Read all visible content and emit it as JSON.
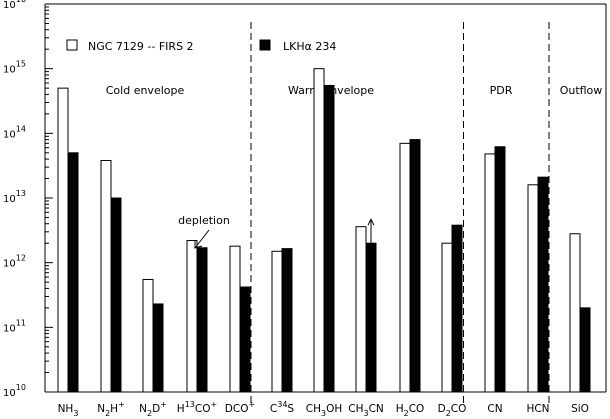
{
  "chart_data": {
    "type": "bar",
    "yscale": "log",
    "ylim": [
      10000000000.0,
      1e+16
    ],
    "y_ticks": [
      {
        "value": 10000000000.0,
        "label_base": "10",
        "label_exp": "10"
      },
      {
        "value": 100000000000.0,
        "label_base": "10",
        "label_exp": "11"
      },
      {
        "value": 1000000000000.0,
        "label_base": "10",
        "label_exp": "12"
      },
      {
        "value": 10000000000000.0,
        "label_base": "10",
        "label_exp": "13"
      },
      {
        "value": 100000000000000.0,
        "label_base": "10",
        "label_exp": "14"
      },
      {
        "value": 1000000000000000.0,
        "label_base": "10",
        "label_exp": "15"
      },
      {
        "value": 1e+16,
        "label_base": "10",
        "label_exp": "16"
      }
    ],
    "categories": [
      {
        "parts": [
          {
            "t": "NH"
          },
          {
            "t": "3",
            "s": "sub"
          }
        ]
      },
      {
        "parts": [
          {
            "t": "N"
          },
          {
            "t": "2",
            "s": "sub"
          },
          {
            "t": "H"
          },
          {
            "t": "+",
            "s": "sup"
          }
        ]
      },
      {
        "parts": [
          {
            "t": "N"
          },
          {
            "t": "2",
            "s": "sub"
          },
          {
            "t": "D"
          },
          {
            "t": "+",
            "s": "sup"
          }
        ]
      },
      {
        "parts": [
          {
            "t": "H"
          },
          {
            "t": "13",
            "s": "sup"
          },
          {
            "t": "CO"
          },
          {
            "t": "+",
            "s": "sup"
          }
        ]
      },
      {
        "parts": [
          {
            "t": "DCO"
          },
          {
            "t": "+",
            "s": "sup"
          }
        ]
      },
      {
        "parts": [
          {
            "t": "C"
          },
          {
            "t": "34",
            "s": "sup"
          },
          {
            "t": "S"
          }
        ]
      },
      {
        "parts": [
          {
            "t": "CH"
          },
          {
            "t": "3",
            "s": "sub"
          },
          {
            "t": "OH"
          }
        ]
      },
      {
        "parts": [
          {
            "t": "CH"
          },
          {
            "t": "3",
            "s": "sub"
          },
          {
            "t": "CN"
          }
        ]
      },
      {
        "parts": [
          {
            "t": "H"
          },
          {
            "t": "2",
            "s": "sub"
          },
          {
            "t": "CO"
          }
        ]
      },
      {
        "parts": [
          {
            "t": "D"
          },
          {
            "t": "2",
            "s": "sub"
          },
          {
            "t": "CO"
          }
        ]
      },
      {
        "parts": [
          {
            "t": "CN"
          }
        ]
      },
      {
        "parts": [
          {
            "t": "HCN"
          }
        ]
      },
      {
        "parts": [
          {
            "t": "SiO"
          }
        ]
      }
    ],
    "series": [
      {
        "name": "NGC 7129 -- FIRS 2",
        "fill": "#ffffff",
        "values": [
          500000000000000.0,
          38000000000000.0,
          550000000000.0,
          2200000000000.0,
          1800000000000.0,
          1500000000000.0,
          1000000000000000.0,
          3600000000000.0,
          70000000000000.0,
          2000000000000.0,
          48000000000000.0,
          16000000000000.0,
          2800000000000.0
        ]
      },
      {
        "name": "LKHα 234",
        "fill": "#000000",
        "values": [
          50000000000000.0,
          10000000000000.0,
          230000000000.0,
          1700000000000.0,
          420000000000.0,
          1650000000000.0,
          550000000000000.0,
          2000000000000.0,
          80000000000000.0,
          3800000000000.0,
          62000000000000.0,
          21000000000000.0,
          200000000000.0
        ]
      }
    ],
    "regions": [
      {
        "label": "Cold envelope",
        "from_index": 0,
        "to_index": 4
      },
      {
        "label": "Warm envelope",
        "from_index": 5,
        "to_index": 9
      },
      {
        "label": "PDR",
        "from_index": 10,
        "to_index": 11
      },
      {
        "label": "Outflow",
        "from_index": 12,
        "to_index": 12
      }
    ],
    "annotations": [
      {
        "text": "depletion",
        "category_index": 3
      },
      {
        "type": "lower-limit-arrow",
        "category_index": 7,
        "series": "LKHα 234"
      }
    ],
    "legend_position": "top",
    "grid": false
  }
}
